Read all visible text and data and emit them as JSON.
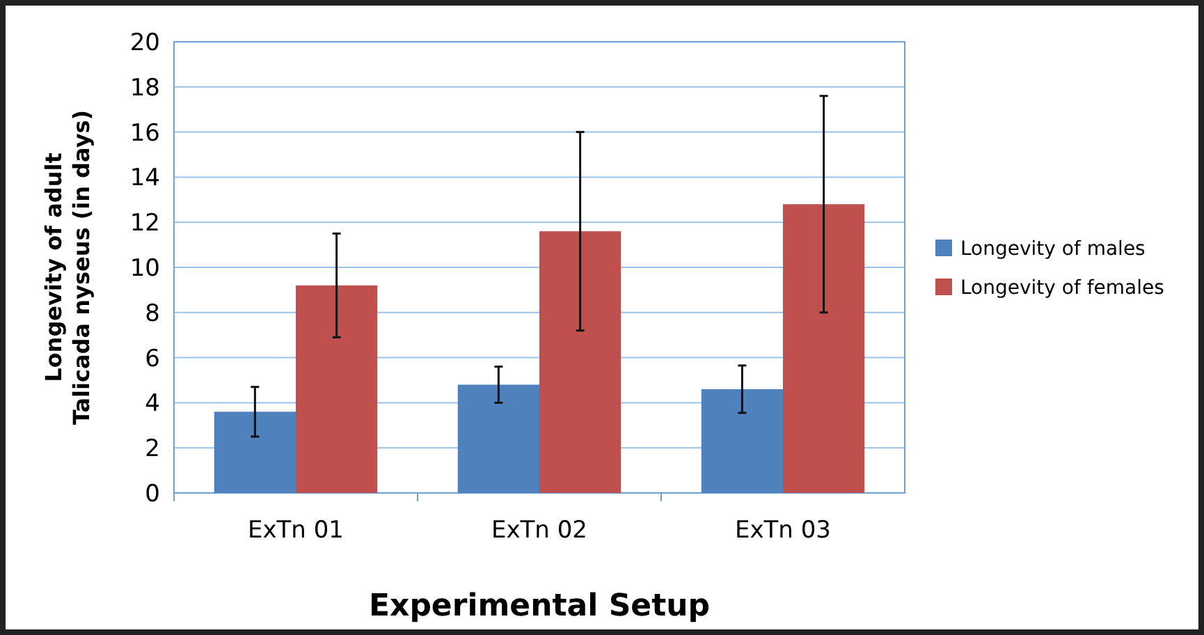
{
  "chart_data": {
    "type": "bar",
    "xlabel": "Experimental Setup",
    "ylabel": "Longevity of adult\nTalicada nyseus (in days)",
    "categories": [
      "ExTn 01",
      "ExTn 02",
      "ExTn 03"
    ],
    "series": [
      {
        "name": "Longevity of males",
        "color": "#4f81bd",
        "values": [
          3.6,
          4.8,
          4.6
        ],
        "errors": [
          1.1,
          0.8,
          1.05
        ]
      },
      {
        "name": "Longevity of females",
        "color": "#c0504d",
        "values": [
          9.2,
          11.6,
          12.8
        ],
        "errors": [
          2.3,
          4.4,
          4.8
        ]
      }
    ],
    "ylim": [
      0,
      20
    ],
    "yticks": [
      0,
      2,
      4,
      6,
      8,
      10,
      12,
      14,
      16,
      18,
      20
    ],
    "grid": "y",
    "legend": "right"
  }
}
